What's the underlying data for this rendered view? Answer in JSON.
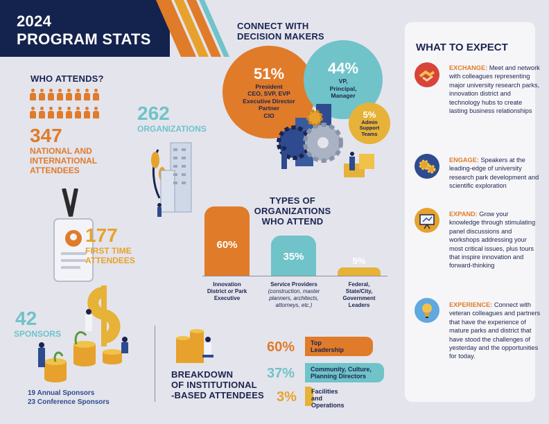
{
  "header": {
    "title_line1": "2024",
    "title_line2": "PROGRAM STATS"
  },
  "connect": {
    "title_line1": "CONNECT WITH",
    "title_line2": "DECISION MAKERS",
    "c1": {
      "pct": "51%",
      "l1": "President",
      "l2": "CEO, SVP, EVP",
      "l3": "Executive Director",
      "l4": "Partner",
      "l5": "CIO"
    },
    "c2": {
      "pct": "44%",
      "l1": "VP,",
      "l2": "Principal,",
      "l3": "Manager"
    },
    "c3": {
      "pct": "5%",
      "l1": "Admin",
      "l2": "Support",
      "l3": "Teams"
    }
  },
  "attends": {
    "title": "WHO ATTENDS?",
    "number": "347",
    "label1": "NATIONAL AND",
    "label2": "INTERNATIONAL",
    "label3": "ATTENDEES"
  },
  "orgs": {
    "number": "262",
    "label": "ORGANIZATIONS"
  },
  "first_time": {
    "number": "177",
    "label1": "FIRST TIME",
    "label2": "ATTENDEES"
  },
  "sponsors": {
    "number": "42",
    "label": "SPONSORS",
    "line1": "19 Annual Sponsors",
    "line2": "23 Conference Sponsors"
  },
  "types": {
    "title1": "TYPES OF",
    "title2": "ORGANIZATIONS",
    "title3": "WHO ATTEND",
    "items": [
      {
        "pct": "60%",
        "l1": "Innovation",
        "l2": "District or Park",
        "l3": "Executive",
        "color": "#e07b2a"
      },
      {
        "pct": "35%",
        "l1": "Service Providers",
        "s1": "(construction, master",
        "s2": "planners, architects,",
        "s3": "attorneys, etc.)",
        "color": "#6fc3c9"
      },
      {
        "pct": "5%",
        "l1": "Federal,",
        "l2": "State/City,",
        "l3": "Government",
        "l4": "Leaders",
        "color": "#e6b237"
      }
    ]
  },
  "breakdown": {
    "title1": "BREAKDOWN",
    "title2": "OF INSTITUTIONAL",
    "title3": "-BASED ATTENDEES",
    "rows": [
      {
        "pct": "60%",
        "l1": "Top",
        "l2": "Leadership",
        "value": 60,
        "color": "#e07b2a"
      },
      {
        "pct": "37%",
        "l1": "Community, Culture,",
        "l2": "Planning Directors",
        "value": 37,
        "color": "#6fc3c9"
      },
      {
        "pct": "3%",
        "l1": "Facilities and",
        "l2": "Operations",
        "value": 3,
        "color": "#e6b237"
      }
    ]
  },
  "expect": {
    "title": "WHAT TO EXPECT",
    "items": [
      {
        "head": "EXCHANGE:",
        "text": "Meet and network with colleagues representing major university research parks, innovation district and technology hubs to create lasting business relationships",
        "icon": "handshake-icon",
        "color": "#d8443a"
      },
      {
        "head": "ENGAGE:",
        "text": "Speakers at the leading-edge of university research park development and scientific exploration",
        "icon": "gears-icon",
        "color": "#2d4b8e"
      },
      {
        "head": "EXPAND:",
        "text": "Grow your knowledge through stimulating panel discussions and workshops addressing your most critical issues, plus tours that inspire innovation and forward-thinking",
        "icon": "presentation-icon",
        "color": "#e6a22c"
      },
      {
        "head": "EXPERIENCE:",
        "text": "Connect with veteran colleagues and partners that have the experience of mature parks and district that have stood the challenges of yesterday and the opportunities for today.",
        "icon": "lightbulb-icon",
        "color": "#5fa8e0"
      }
    ]
  }
}
